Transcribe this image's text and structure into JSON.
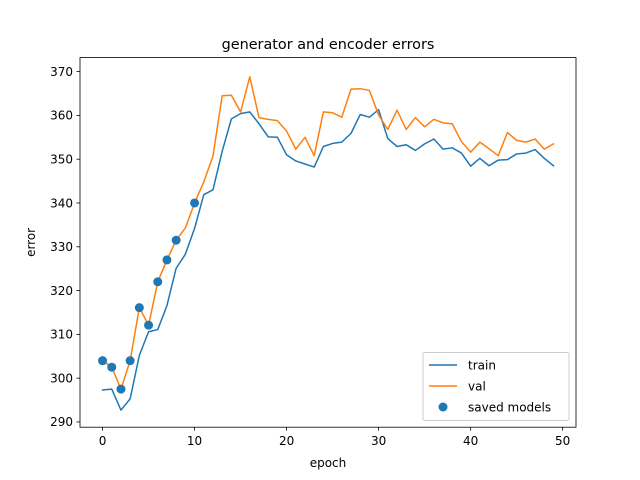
{
  "chart_data": {
    "type": "line",
    "title": "generator and encoder errors",
    "xlabel": "epoch",
    "ylabel": "error",
    "xlim": [
      -2.45,
      51.45
    ],
    "ylim": [
      288.8,
      373.2
    ],
    "xticks": [
      0,
      10,
      20,
      30,
      40,
      50
    ],
    "yticks": [
      290,
      300,
      310,
      320,
      330,
      340,
      350,
      360,
      370
    ],
    "grid": false,
    "legend_position": "lower-right",
    "x": [
      0,
      1,
      2,
      3,
      4,
      5,
      6,
      7,
      8,
      9,
      10,
      11,
      12,
      13,
      14,
      15,
      16,
      17,
      18,
      19,
      20,
      21,
      22,
      23,
      24,
      25,
      26,
      27,
      28,
      29,
      30,
      31,
      32,
      33,
      34,
      35,
      36,
      37,
      38,
      39,
      40,
      41,
      42,
      43,
      44,
      45,
      46,
      47,
      48,
      49
    ],
    "series": [
      {
        "name": "train",
        "color": "#1f77b4",
        "values": [
          297.3,
          297.5,
          292.7,
          295.3,
          305.2,
          310.6,
          311.1,
          316.6,
          325.1,
          328.3,
          334.2,
          341.9,
          343.0,
          351.8,
          359.2,
          360.4,
          360.8,
          358.1,
          355.1,
          355.0,
          351.0,
          349.6,
          348.9,
          348.2,
          352.9,
          353.6,
          353.9,
          355.9,
          360.2,
          359.6,
          361.3,
          354.7,
          352.9,
          353.3,
          352.0,
          353.5,
          354.6,
          352.3,
          352.6,
          351.4,
          348.4,
          350.2,
          348.5,
          349.8,
          349.9,
          351.2,
          351.4,
          352.2,
          350.2,
          348.5
        ]
      },
      {
        "name": "val",
        "color": "#ff7f0e",
        "values": [
          304.0,
          302.5,
          297.5,
          304.0,
          316.1,
          312.1,
          322.0,
          327.0,
          331.5,
          334.3,
          340.0,
          344.8,
          350.7,
          364.5,
          364.6,
          360.8,
          368.8,
          359.5,
          359.1,
          358.8,
          356.4,
          352.3,
          355.0,
          350.8,
          360.8,
          360.6,
          359.6,
          366.0,
          366.1,
          365.7,
          360.1,
          356.8,
          361.2,
          356.8,
          359.5,
          357.4,
          359.1,
          358.3,
          358.1,
          354.0,
          351.6,
          353.9,
          352.4,
          350.8,
          356.1,
          354.3,
          353.9,
          354.6,
          352.3,
          353.5
        ]
      }
    ],
    "saved_models": {
      "name": "saved models",
      "color": "#1f77b4",
      "x": [
        0,
        1,
        2,
        3,
        4,
        5,
        6,
        7,
        8,
        10
      ],
      "y": [
        304.0,
        302.5,
        297.5,
        304.0,
        316.1,
        312.1,
        322.0,
        327.0,
        331.5,
        340.0
      ]
    }
  }
}
